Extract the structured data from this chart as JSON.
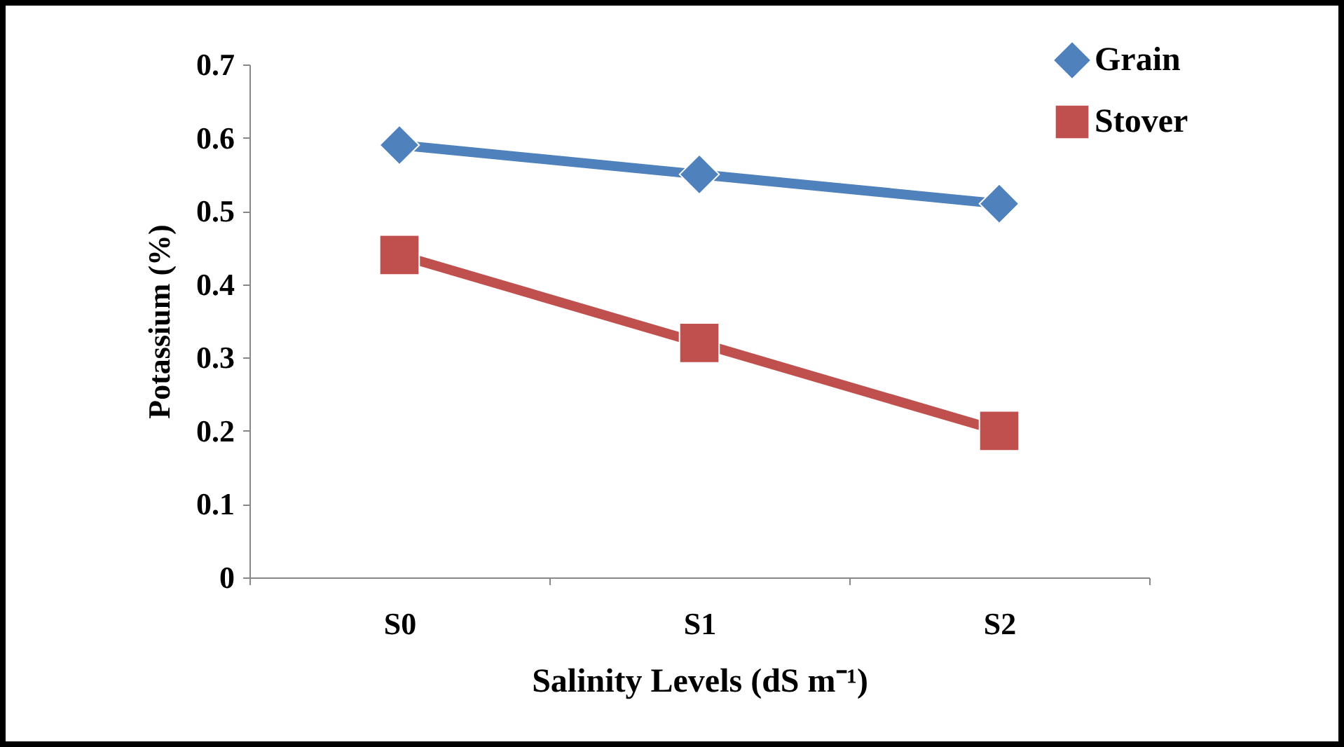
{
  "chart_data": {
    "type": "line",
    "xlabel": "Salinity Levels (dS m⁻¹)",
    "ylabel": "Potassium (%)",
    "categories": [
      "S0",
      "S1",
      "S2"
    ],
    "series": [
      {
        "name": "Grain",
        "color": "#4f81bd",
        "marker": "diamond",
        "values": [
          0.59,
          0.55,
          0.51
        ]
      },
      {
        "name": "Stover",
        "color": "#c0504d",
        "marker": "square",
        "values": [
          0.44,
          0.32,
          0.2
        ]
      }
    ],
    "ylim": [
      0,
      0.7
    ],
    "yticks": [
      0,
      0.1,
      0.2,
      0.3,
      0.4,
      0.5,
      0.6,
      0.7
    ],
    "grid": false,
    "legend": "top right"
  }
}
